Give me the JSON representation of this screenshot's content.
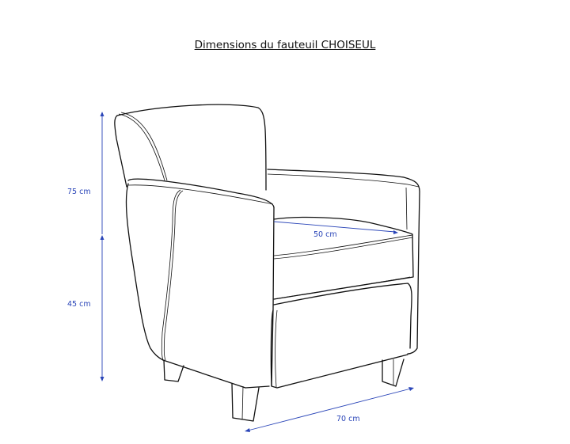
{
  "title": "Dimensions du fauteuil CHOISEUL",
  "dimensions": {
    "total_height": "75 cm",
    "seat_height": "45 cm",
    "seat_depth": "50 cm",
    "width": "70 cm"
  },
  "colors": {
    "dimension": "#2a45b8",
    "outline": "#111111"
  }
}
